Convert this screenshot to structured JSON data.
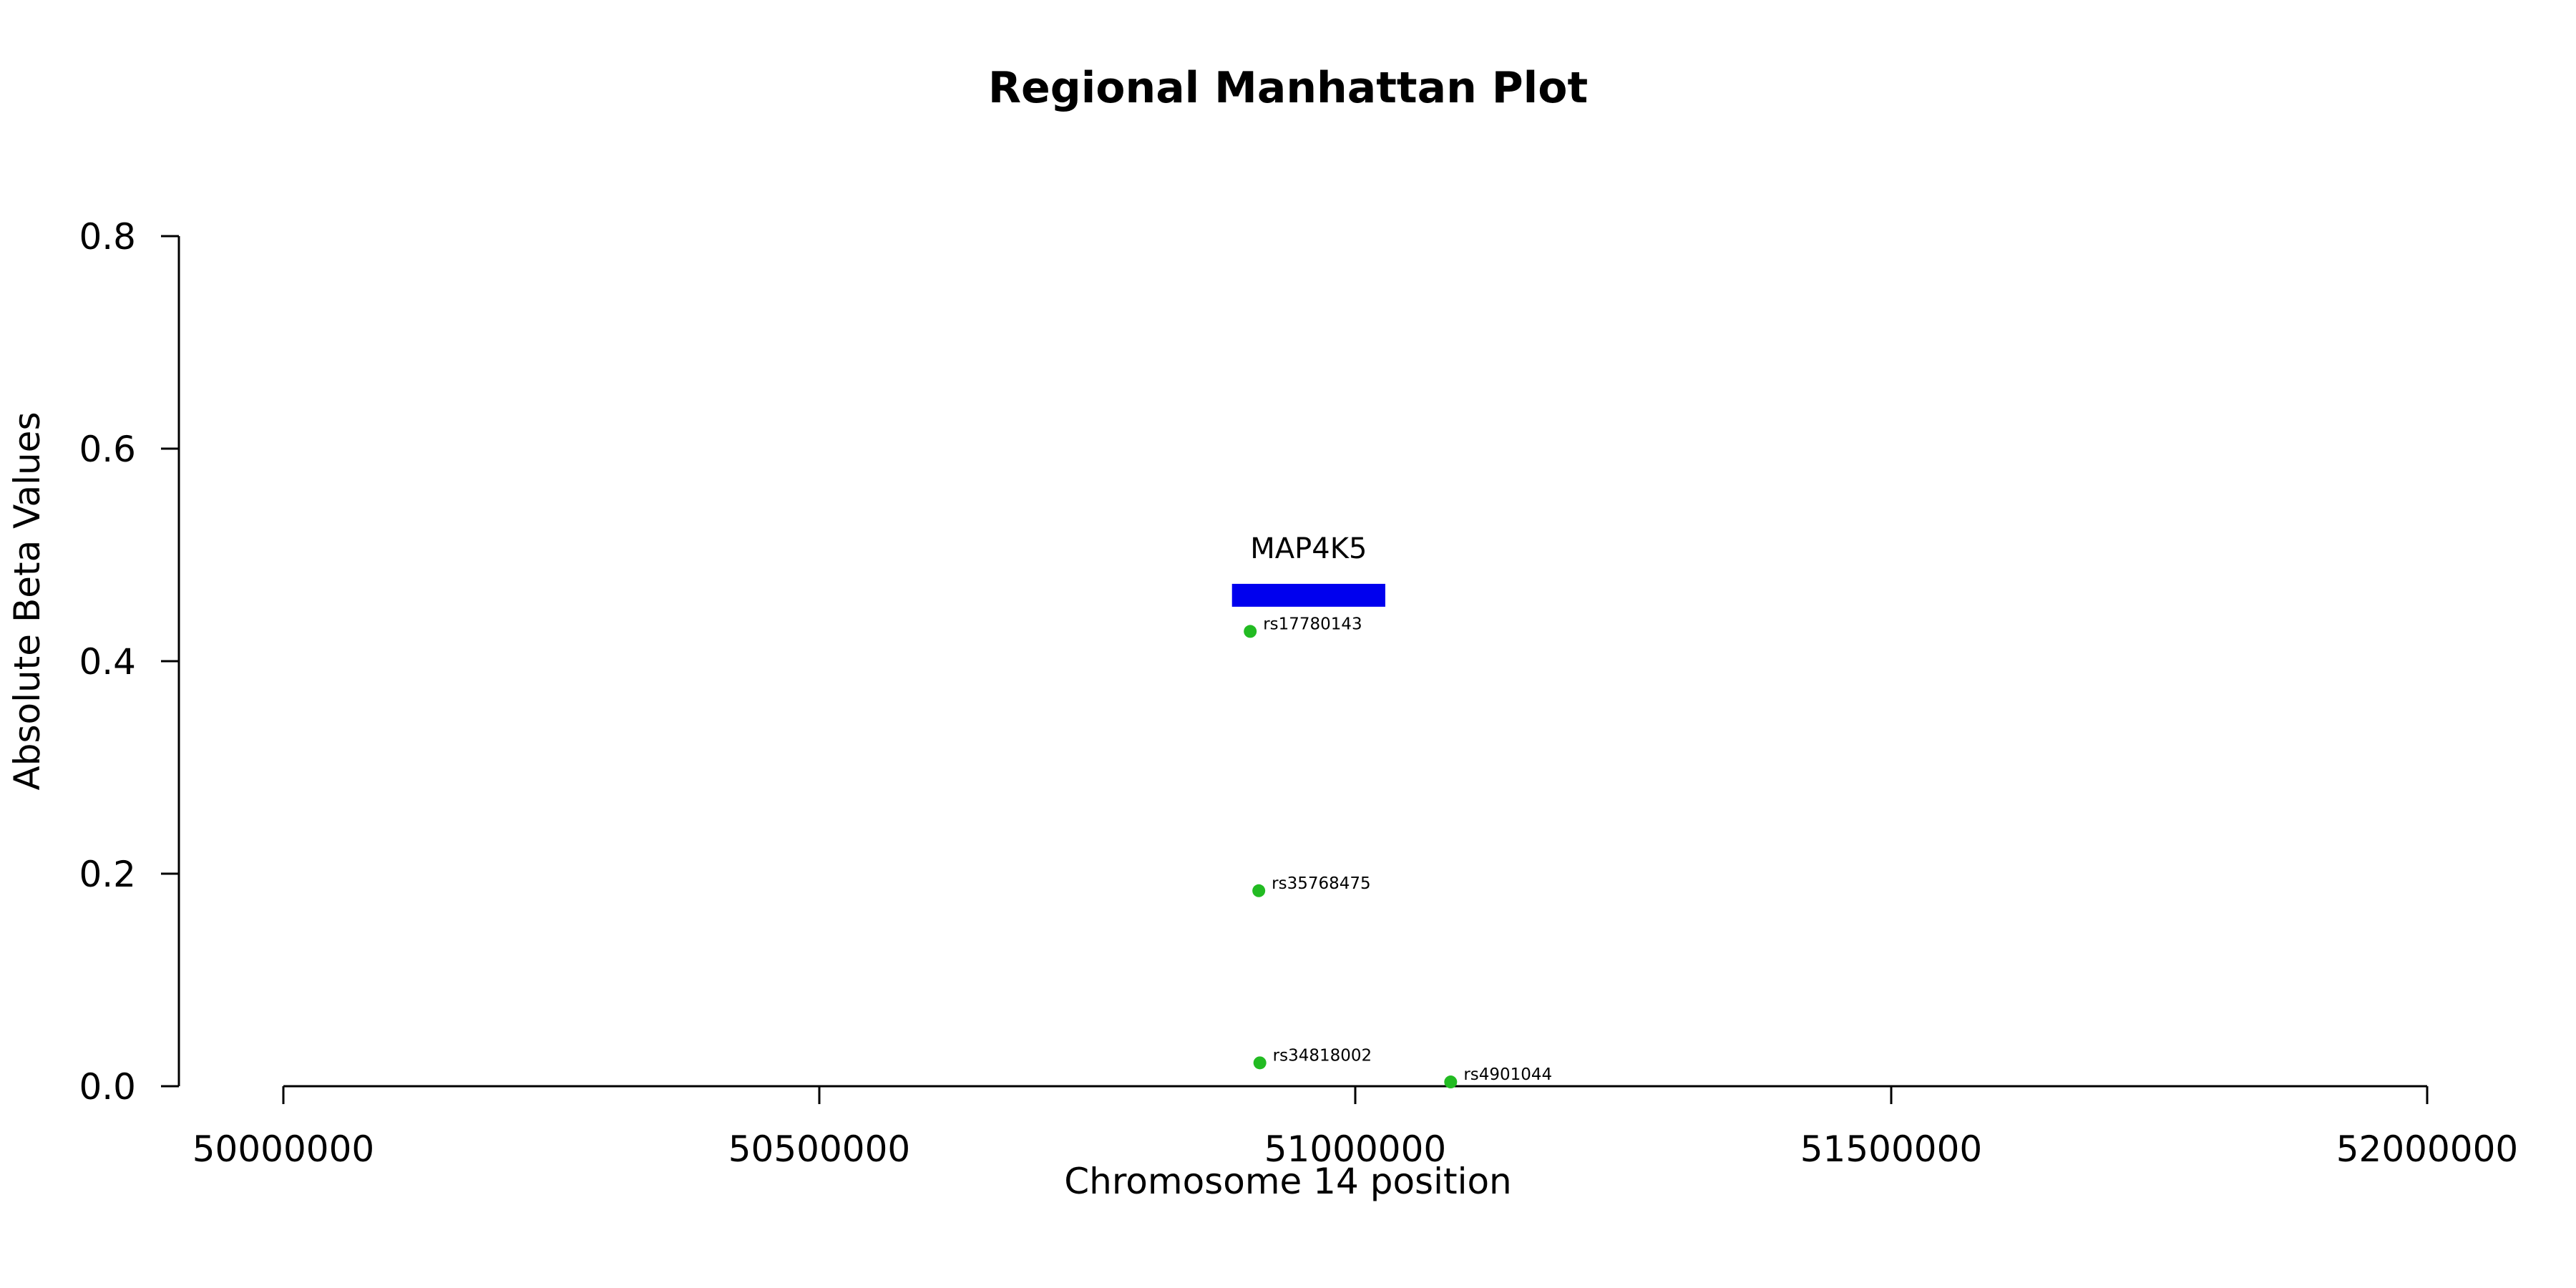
{
  "chart_data": {
    "type": "scatter",
    "title": "Regional Manhattan Plot",
    "xlabel": "Chromosome 14 position",
    "ylabel": "Absolute Beta Values",
    "xlim": [
      50000000,
      52000000
    ],
    "ylim": [
      0,
      0.8
    ],
    "x_ticks": [
      50000000,
      50500000,
      51000000,
      51500000,
      52000000
    ],
    "y_ticks": [
      0.0,
      0.2,
      0.4,
      0.6,
      0.8
    ],
    "x_tick_labels": [
      "50000000",
      "50500000",
      "51000000",
      "51500000",
      "52000000"
    ],
    "y_tick_labels": [
      "0.0",
      "0.2",
      "0.4",
      "0.6",
      "0.8"
    ],
    "grid": false,
    "point_color": "#22bb22",
    "gene_color": "#0000ee",
    "genes": [
      {
        "name": "MAP4K5",
        "start": 50885000,
        "end": 51028000,
        "y": 0.462
      }
    ],
    "points": [
      {
        "label": "rs17780143",
        "x": 50902000,
        "y": 0.428
      },
      {
        "label": "rs35768475",
        "x": 50910000,
        "y": 0.184
      },
      {
        "label": "rs34818002",
        "x": 50911000,
        "y": 0.022
      },
      {
        "label": "rs4901044",
        "x": 51089000,
        "y": 0.004
      }
    ]
  }
}
